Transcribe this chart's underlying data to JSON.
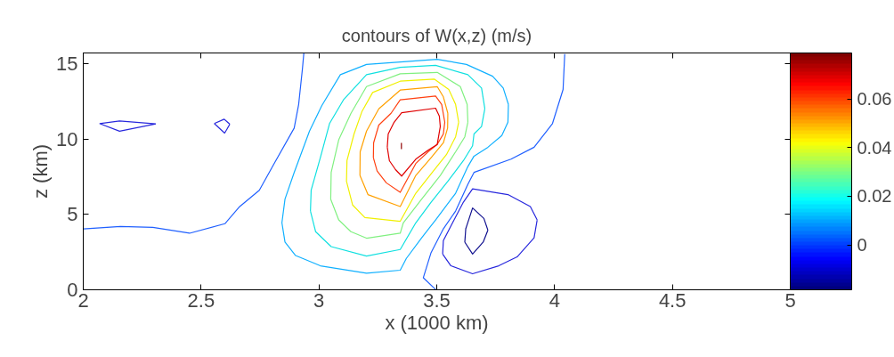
{
  "chart_data": {
    "type": "line",
    "title": "contours of W(x,z) (m/s)",
    "xlabel": "x (1000 km)",
    "ylabel": "z (km)",
    "xlim": [
      2,
      5
    ],
    "ylim": [
      0,
      15.7
    ],
    "xticks": [
      2,
      2.5,
      3,
      3.5,
      4,
      4.5,
      5
    ],
    "yticks": [
      0,
      5,
      10,
      15
    ],
    "clim": [
      -0.0185,
      0.079
    ],
    "cticks": [
      0,
      0.02,
      0.04,
      0.06
    ],
    "grid": false,
    "series": [
      {
        "color": "#2060ff",
        "x": [
          2.001,
          2.158,
          2.295,
          2.451,
          2.601,
          2.664,
          2.747,
          2.81,
          2.895,
          2.914,
          2.93,
          2.936
        ],
        "values": [
          4.04,
          4.2,
          4.14,
          3.75,
          4.38,
          5.52,
          6.6,
          8.37,
          10.72,
          12.29,
          14.65,
          15.69
        ]
      },
      {
        "color": "#2060ff",
        "x": [
          4.043,
          4.036,
          3.991,
          3.913,
          3.815,
          3.658,
          3.632,
          3.58,
          3.528,
          3.476,
          3.443,
          3.495
        ],
        "values": [
          15.63,
          13.28,
          11.02,
          9.45,
          8.66,
          7.78,
          6.99,
          5.22,
          4.04,
          2.47,
          0.8,
          0.02
        ]
      },
      {
        "color": "#2828dd",
        "x": [
          2.069,
          2.154,
          2.308,
          null,
          2.069,
          2.154,
          2.308
        ],
        "values": [
          11.02,
          11.19,
          11.0,
          null,
          11.02,
          10.51,
          11.0
        ]
      },
      {
        "color": "#2828dd",
        "x": [
          2.556,
          2.598,
          2.622,
          null,
          2.556,
          2.6,
          2.622
        ],
        "values": [
          11.02,
          11.31,
          10.98,
          null,
          11.02,
          10.39,
          10.98
        ]
      },
      {
        "color": "#2828dd",
        "x": [
          3.525,
          3.528,
          3.567,
          3.613,
          3.652,
          3.802,
          3.897,
          3.926,
          null,
          3.525,
          3.56,
          3.652,
          3.763,
          3.841,
          3.913,
          3.926
        ],
        "values": [
          2.37,
          3.26,
          4.44,
          5.81,
          6.69,
          6.31,
          5.52,
          4.63,
          null,
          2.37,
          1.59,
          1.06,
          1.59,
          2.18,
          3.45,
          4.63
        ]
      },
      {
        "color": "#10108f",
        "x": [
          3.619,
          3.623,
          3.652,
          3.7,
          3.717,
          null,
          3.619,
          3.652,
          3.697,
          3.717
        ],
        "values": [
          3.16,
          4.04,
          5.42,
          4.73,
          3.95,
          null,
          3.16,
          2.37,
          3.16,
          3.95
        ]
      },
      {
        "color": "#10b0ff",
        "x": [
          2.843,
          2.856,
          2.895,
          2.96,
          3.012,
          3.091,
          3.202,
          3.502,
          3.626,
          3.737,
          3.782,
          3.804,
          null,
          2.843,
          2.856,
          2.901,
          3.006,
          3.202,
          3.345,
          3.371,
          3.436,
          3.495,
          3.58,
          3.632,
          3.658,
          3.717,
          3.776,
          3.802,
          3.804
        ],
        "values": [
          4.44,
          6.01,
          7.78,
          10.52,
          12.2,
          14.26,
          14.94,
          15.28,
          14.94,
          14.16,
          13.38,
          12.29,
          null,
          4.44,
          3.16,
          2.27,
          1.59,
          1.1,
          1.3,
          2.08,
          3.45,
          4.63,
          6.4,
          8.17,
          8.86,
          9.45,
          10.23,
          11.11,
          12.29
        ]
      },
      {
        "color": "#10e0e0",
        "x": [
          2.964,
          2.967,
          3.006,
          3.045,
          3.104,
          3.202,
          3.345,
          3.495,
          3.632,
          3.69,
          3.704,
          null,
          2.964,
          2.986,
          3.052,
          3.202,
          3.345,
          3.411,
          3.476,
          3.547,
          3.613,
          3.652,
          3.658,
          3.69,
          3.704
        ],
        "values": [
          5.22,
          6.6,
          8.76,
          11.02,
          12.59,
          14.26,
          14.75,
          14.88,
          14.26,
          13.38,
          12.0,
          null,
          5.22,
          3.85,
          2.86,
          2.24,
          2.67,
          4.44,
          5.81,
          7.19,
          8.56,
          9.55,
          10.33,
          10.82,
          12.0
        ]
      },
      {
        "color": "#80f080",
        "x": [
          3.05,
          3.052,
          3.084,
          3.136,
          3.202,
          3.345,
          3.502,
          3.6,
          3.629,
          3.632,
          null,
          3.05,
          3.084,
          3.136,
          3.202,
          3.345,
          3.358,
          3.436,
          3.515,
          3.58,
          3.619,
          3.632
        ],
        "values": [
          6.01,
          7.78,
          9.94,
          11.7,
          13.47,
          14.32,
          14.41,
          13.47,
          12.29,
          11.11,
          null,
          6.01,
          4.63,
          3.85,
          3.42,
          3.75,
          4.44,
          6.01,
          7.58,
          9.15,
          10.14,
          11.11
        ]
      },
      {
        "color": "#f0f000",
        "x": [
          3.117,
          3.119,
          3.149,
          3.182,
          3.228,
          3.345,
          3.489,
          3.551,
          3.58,
          3.593,
          null,
          3.117,
          3.143,
          3.195,
          3.345,
          3.411,
          3.481,
          3.541,
          3.58,
          3.593
        ],
        "values": [
          7.19,
          8.56,
          10.33,
          11.8,
          13.08,
          13.83,
          13.97,
          13.28,
          12.29,
          11.11,
          null,
          7.19,
          5.62,
          4.79,
          4.54,
          6.4,
          7.78,
          8.96,
          10.14,
          11.11
        ]
      },
      {
        "color": "#ffa000",
        "x": [
          3.174,
          3.175,
          3.202,
          3.254,
          3.345,
          3.502,
          3.528,
          3.547,
          null,
          3.174,
          3.208,
          3.345,
          3.411,
          3.476,
          3.528,
          3.546,
          3.547
        ],
        "values": [
          7.58,
          9.15,
          10.52,
          12.0,
          13.24,
          13.47,
          12.79,
          11.7,
          null,
          7.58,
          6.31,
          5.52,
          7.58,
          8.76,
          9.74,
          10.72,
          11.7
        ]
      },
      {
        "color": "#ff4010",
        "x": [
          3.231,
          3.232,
          3.254,
          3.306,
          3.345,
          3.495,
          3.521,
          3.534,
          null,
          3.231,
          3.247,
          3.286,
          3.345,
          3.411,
          3.463,
          3.502,
          3.528,
          3.534
        ],
        "values": [
          8.76,
          9.74,
          10.92,
          11.7,
          12.59,
          12.84,
          12.29,
          11.11,
          null,
          8.76,
          7.87,
          7.09,
          6.46,
          8.37,
          9.15,
          9.64,
          10.33,
          11.11
        ]
      },
      {
        "color": "#e00000",
        "x": [
          3.29,
          3.294,
          3.319,
          3.351,
          3.495,
          3.511,
          3.515,
          null,
          3.29,
          3.299,
          3.325,
          3.351,
          3.411,
          3.463,
          3.502,
          3.515
        ],
        "values": [
          9.45,
          10.33,
          11.11,
          11.74,
          12.04,
          11.51,
          10.82,
          null,
          9.45,
          8.56,
          7.97,
          7.54,
          8.66,
          9.25,
          9.64,
          10.82
        ]
      },
      {
        "color": "#900000",
        "x": [
          3.35,
          3.35
        ],
        "values": [
          9.74,
          9.33
        ]
      }
    ]
  }
}
